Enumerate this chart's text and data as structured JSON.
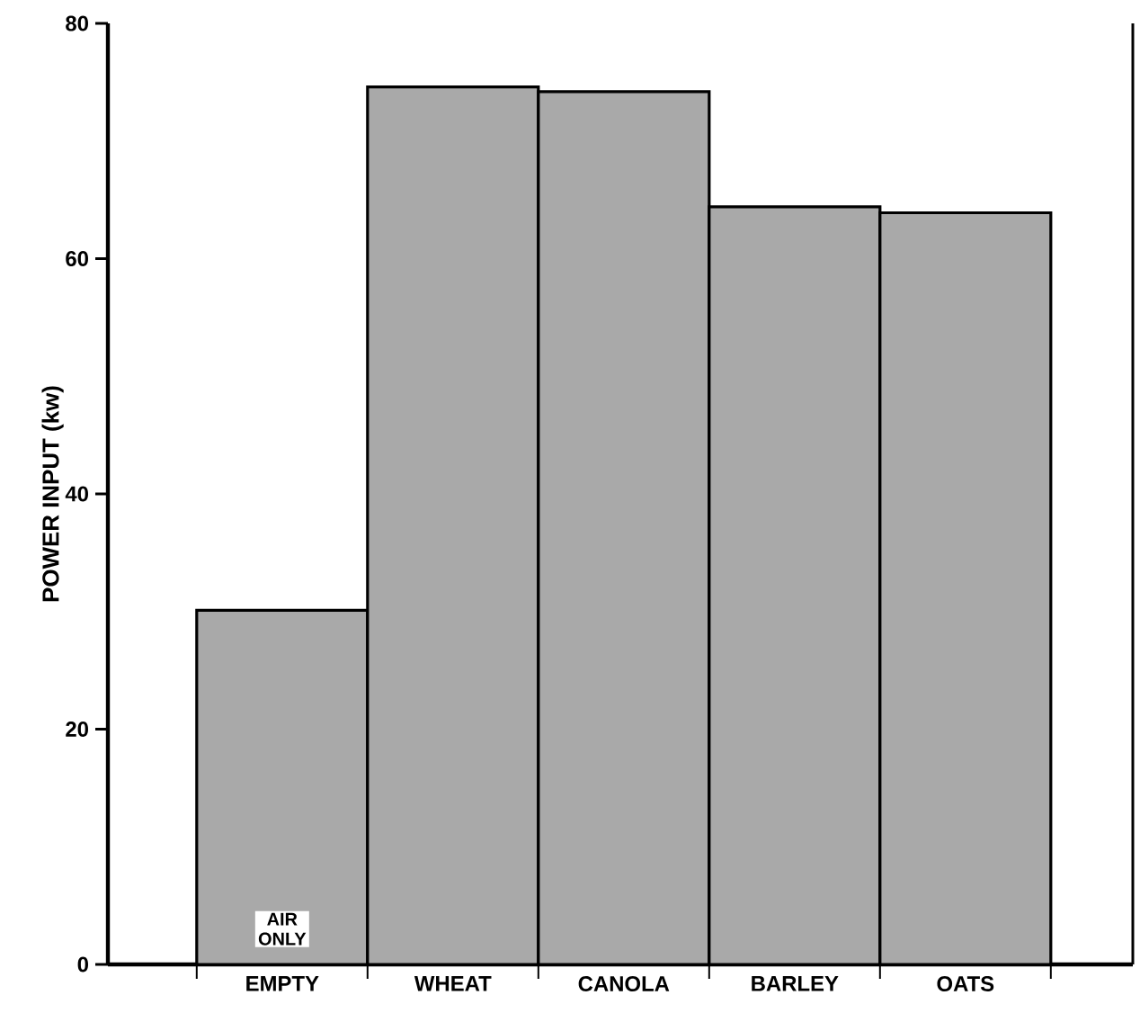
{
  "chart_data": {
    "type": "bar",
    "ylabel": "POWER INPUT (kw)",
    "categories": [
      "EMPTY",
      "WHEAT",
      "CANOLA",
      "BARLEY",
      "OATS"
    ],
    "values": [
      30.1,
      74.6,
      74.2,
      64.4,
      63.9
    ],
    "color": "#a9a9a9",
    "ylim": [
      0,
      80
    ],
    "yticks": [
      0,
      20,
      40,
      60,
      80
    ],
    "grid": false,
    "annotations": [
      {
        "text": "AIR ONLY",
        "x": "EMPTY",
        "y": 3
      }
    ]
  }
}
